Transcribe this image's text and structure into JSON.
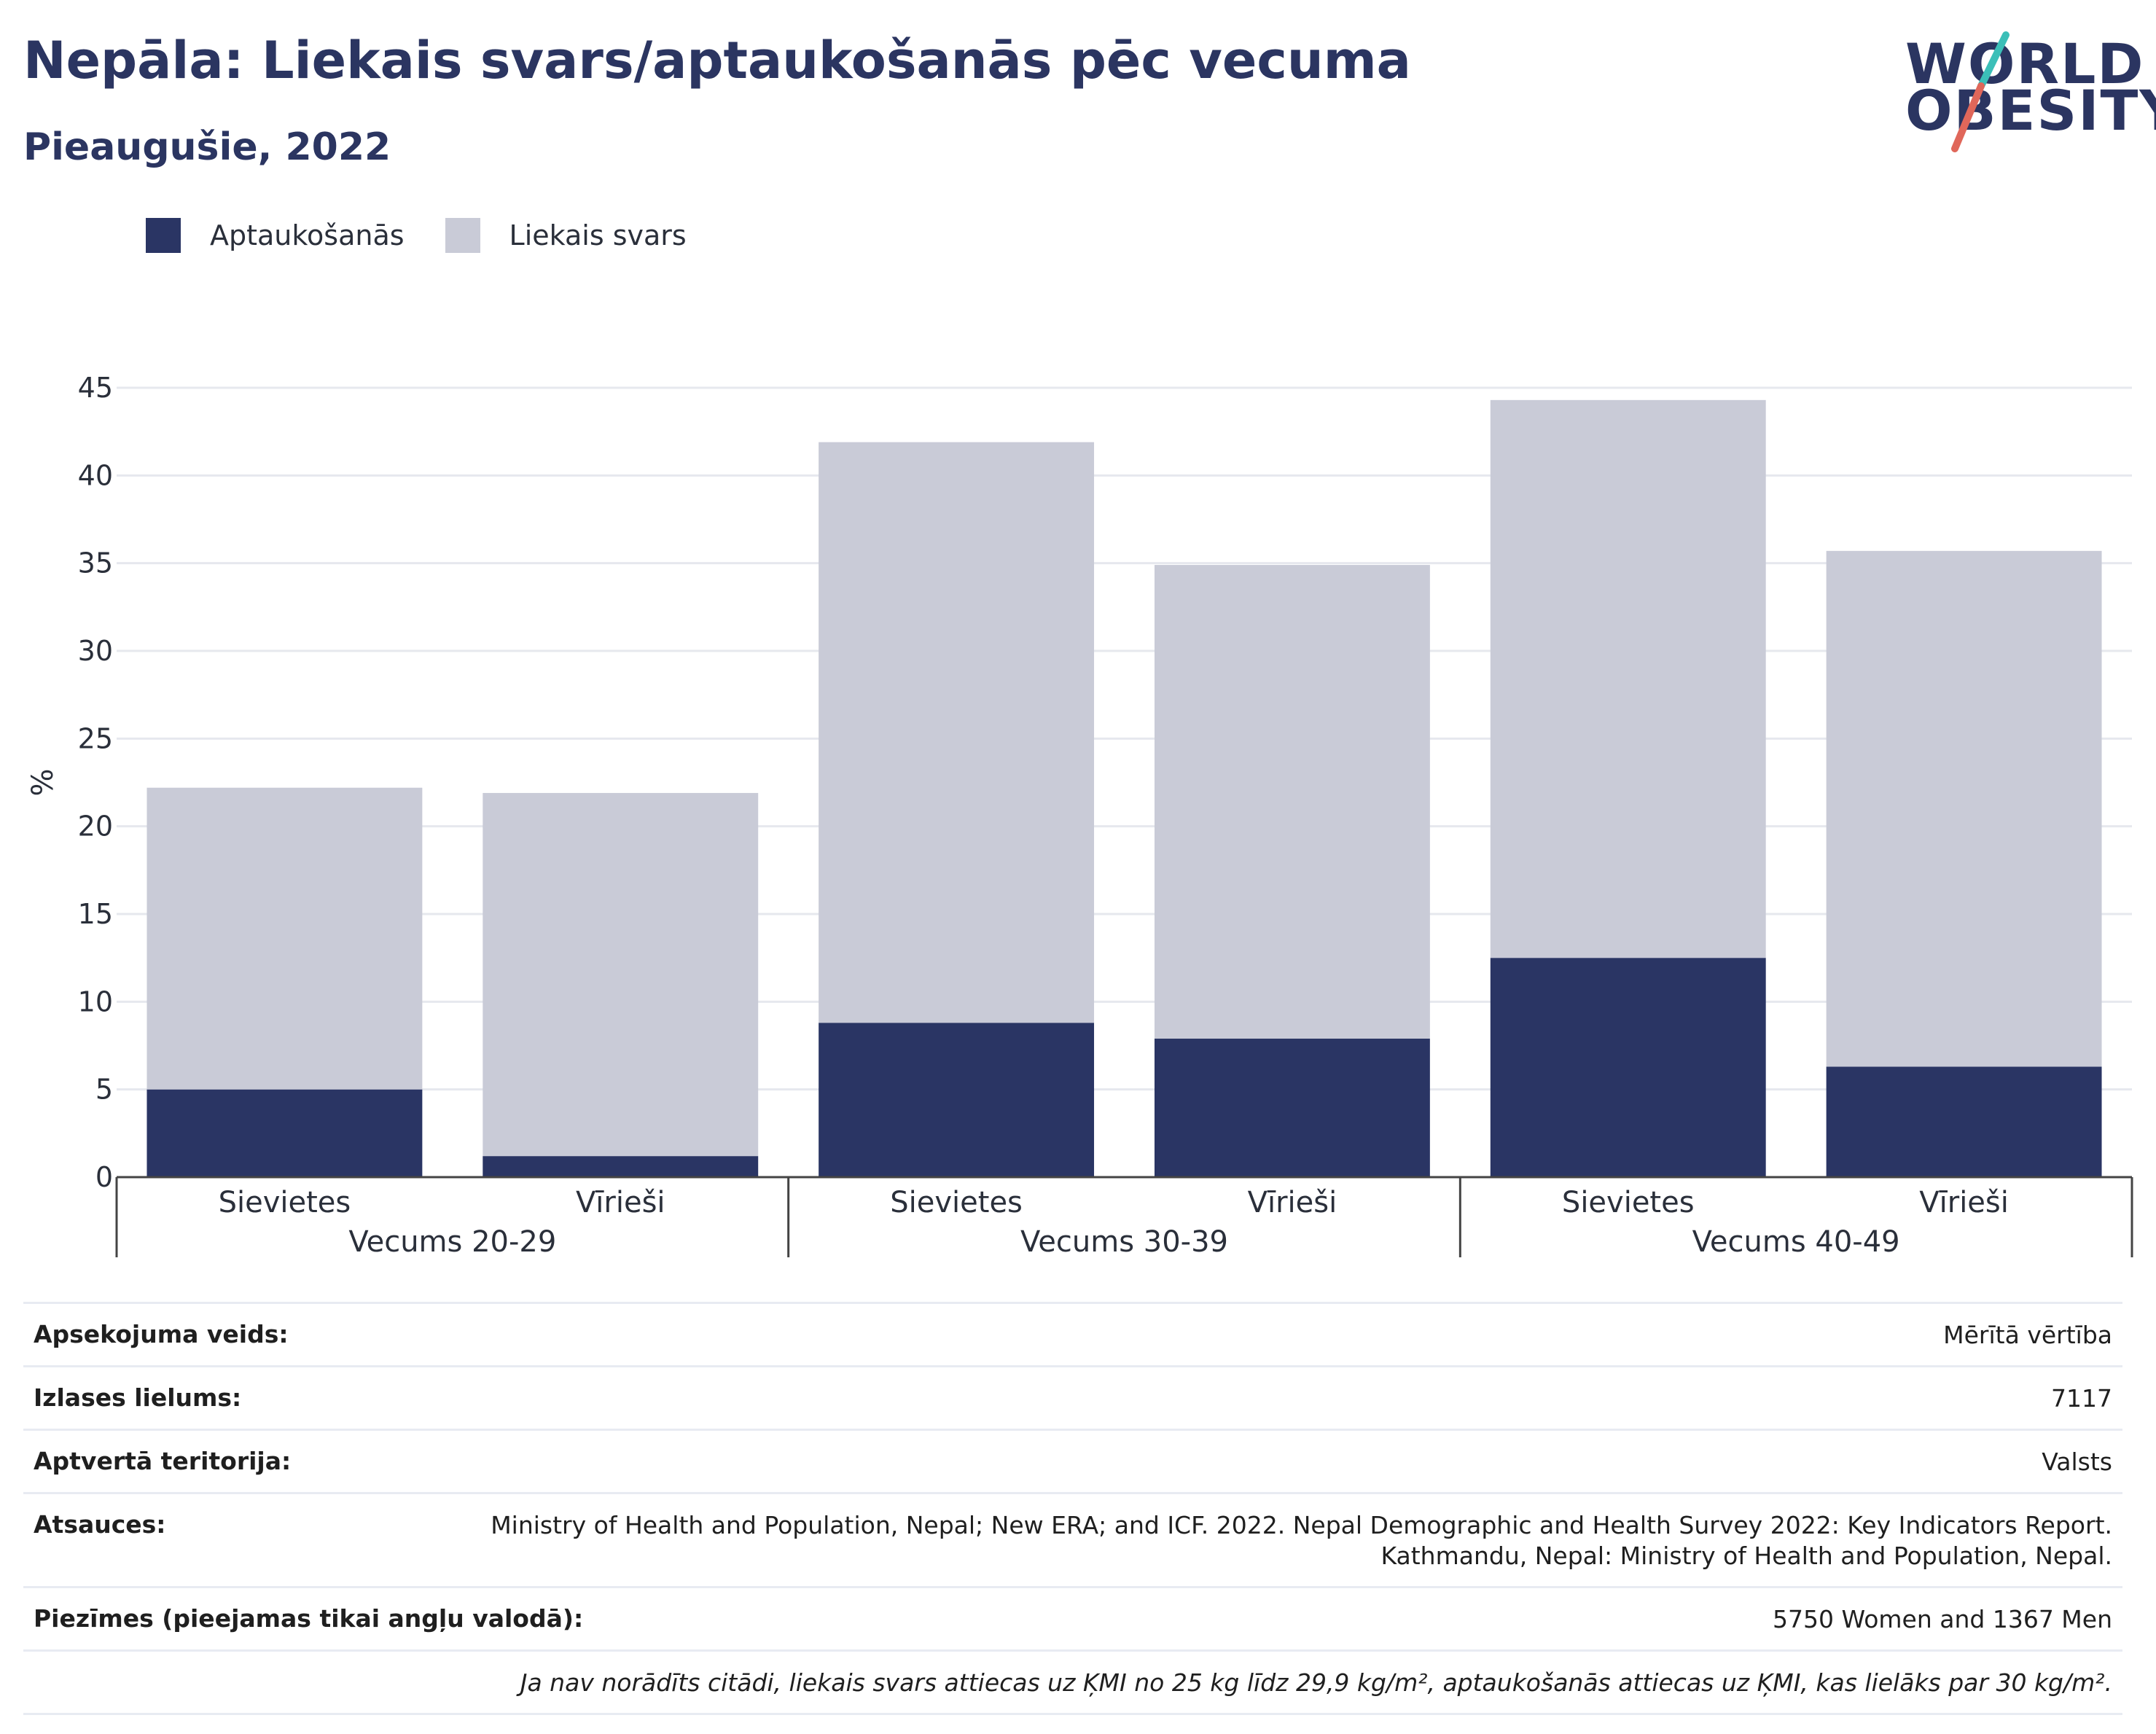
{
  "title": "Nepāla: Liekais svars/aptaukošanās pēc vecuma",
  "subtitle": "Pieaugušie, 2022",
  "logo": {
    "line1": "WORLD",
    "line2": "OBESITY"
  },
  "colors": {
    "obesity": "#2a3564",
    "overweight": "#c9cbd7",
    "title": "#2b3561",
    "logo_teal": "#3bbfb8",
    "logo_red": "#e0675a",
    "grid": "#e6e8ee",
    "axis": "#444444"
  },
  "legend": [
    {
      "label": "Aptaukošanās",
      "color": "#2a3564"
    },
    {
      "label": "Liekais svars",
      "color": "#c9cbd7"
    }
  ],
  "chart_data": {
    "type": "bar",
    "stacked": true,
    "ylabel": "%",
    "ylim": [
      0,
      45
    ],
    "yticks": [
      0,
      5,
      10,
      15,
      20,
      25,
      30,
      35,
      40,
      45
    ],
    "grid": true,
    "legend_position": "top-left",
    "categories": [
      "Sievietes",
      "Vīrieši",
      "Sievietes",
      "Vīrieši",
      "Sievietes",
      "Vīrieši"
    ],
    "groups": [
      {
        "label": "Vecums 20-29",
        "categories": [
          0,
          1
        ]
      },
      {
        "label": "Vecums 30-39",
        "categories": [
          2,
          3
        ]
      },
      {
        "label": "Vecums 40-49",
        "categories": [
          4,
          5
        ]
      }
    ],
    "series": [
      {
        "name": "Aptaukošanās",
        "values": [
          5.0,
          1.2,
          8.8,
          7.9,
          12.5,
          6.3
        ]
      },
      {
        "name": "Liekais svars",
        "values": [
          17.2,
          20.7,
          33.1,
          27.0,
          31.8,
          29.4
        ]
      }
    ]
  },
  "meta": [
    {
      "key": "Apsekojuma veids:",
      "value": "Mērītā vērtība"
    },
    {
      "key": "Izlases lielums:",
      "value": "7117"
    },
    {
      "key": "Aptvertā teritorija:",
      "value": "Valsts"
    },
    {
      "key": "Atsauces:",
      "value_lines": [
        "Ministry of Health and Population, Nepal; New ERA; and ICF. 2022. Nepal Demographic and Health Survey 2022: Key Indicators Report.",
        "Kathmandu, Nepal: Ministry of Health and Population, Nepal."
      ]
    },
    {
      "key": "Piezīmes (pieejamas tikai angļu valodā):",
      "value": "5750 Women and 1367 Men"
    }
  ],
  "footnote": "Ja nav norādīts citādi, liekais svars attiecas uz ĶMI no 25 kg līdz 29,9 kg/m², aptaukošanās attiecas uz ĶMI, kas lielāks par 30 kg/m²."
}
